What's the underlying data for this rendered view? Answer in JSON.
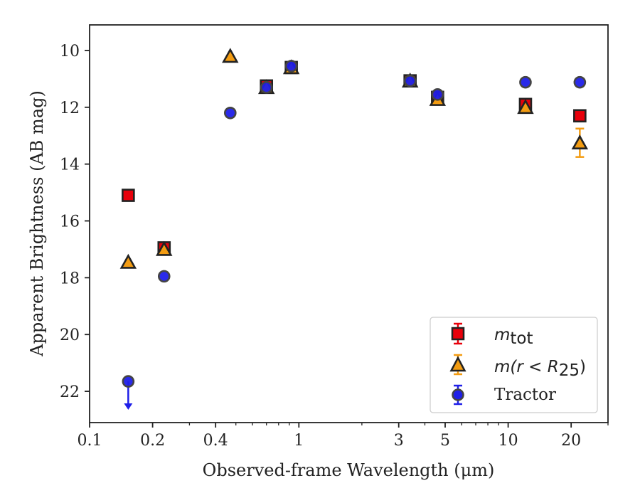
{
  "chart_data": {
    "type": "scatter",
    "xlabel": "Observed-frame Wavelength (μm)",
    "ylabel": "Apparent Brightness (AB mag)",
    "x_scale": "log",
    "xlim": [
      0.1,
      30
    ],
    "ylim": [
      23.1,
      9.1
    ],
    "y_inverted": true,
    "x_ticks": [
      0.1,
      0.2,
      0.4,
      1,
      3,
      5,
      10,
      20
    ],
    "x_tick_labels": [
      "0.1",
      "0.2",
      "0.4",
      "1",
      "3",
      "5",
      "10",
      "20"
    ],
    "y_ticks": [
      10,
      12,
      14,
      16,
      18,
      20,
      22
    ],
    "y_tick_labels": [
      "10",
      "12",
      "14",
      "16",
      "18",
      "20",
      "22"
    ],
    "grid": false,
    "legend_position": "bottom-right",
    "series": [
      {
        "name": "m_tot",
        "marker": "square",
        "color": "#e8000b",
        "edge_color": "#222222",
        "points": [
          {
            "x": 0.153,
            "y": 15.1
          },
          {
            "x": 0.227,
            "y": 16.95
          },
          {
            "x": 0.7,
            "y": 11.25
          },
          {
            "x": 0.92,
            "y": 10.6
          },
          {
            "x": 3.4,
            "y": 11.07
          },
          {
            "x": 4.6,
            "y": 11.65
          },
          {
            "x": 12.1,
            "y": 11.9
          },
          {
            "x": 22.0,
            "y": 12.3
          }
        ]
      },
      {
        "name": "m(r<R_25)",
        "marker": "triangle",
        "color": "#f39c12",
        "edge_color": "#222222",
        "points": [
          {
            "x": 0.153,
            "y": 17.45
          },
          {
            "x": 0.227,
            "y": 17.0
          },
          {
            "x": 0.47,
            "y": 10.2
          },
          {
            "x": 0.7,
            "y": 11.3
          },
          {
            "x": 0.92,
            "y": 10.6
          },
          {
            "x": 3.4,
            "y": 11.07
          },
          {
            "x": 4.6,
            "y": 11.72
          },
          {
            "x": 12.1,
            "y": 12.0
          },
          {
            "x": 22.0,
            "y": 13.25,
            "err": 0.5
          }
        ]
      },
      {
        "name": "Tractor",
        "marker": "circle",
        "color": "#1f1fe8",
        "edge_color": "#444444",
        "points": [
          {
            "x": 0.153,
            "y": 21.65,
            "upper_limit": true
          },
          {
            "x": 0.227,
            "y": 17.95
          },
          {
            "x": 0.47,
            "y": 12.2
          },
          {
            "x": 0.7,
            "y": 11.3
          },
          {
            "x": 0.92,
            "y": 10.55
          },
          {
            "x": 3.4,
            "y": 11.07
          },
          {
            "x": 4.6,
            "y": 11.55
          },
          {
            "x": 12.1,
            "y": 11.12
          },
          {
            "x": 22.0,
            "y": 11.12
          }
        ]
      }
    ]
  },
  "legend": {
    "mtot_main": "m",
    "mtot_sub": "tot",
    "mr_main": "m(r < R",
    "mr_sub": "25",
    "mr_close": ")",
    "tractor": "Tractor"
  }
}
